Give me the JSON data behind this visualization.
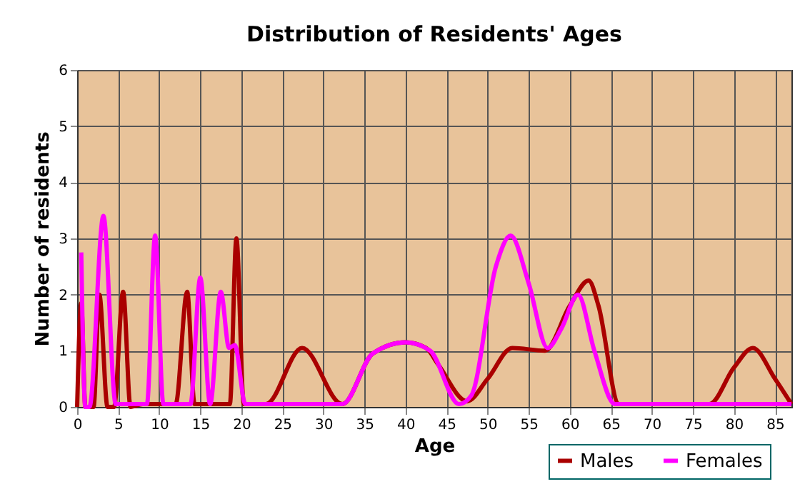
{
  "chart_data": {
    "type": "line",
    "title": "Distribution of Residents' Ages",
    "xlabel": "Age",
    "ylabel": "Number of residents",
    "xlim": [
      0,
      87
    ],
    "xticks": [
      0,
      5,
      10,
      15,
      20,
      25,
      30,
      35,
      40,
      45,
      50,
      55,
      60,
      65,
      70,
      75,
      80,
      85
    ],
    "ylim": [
      0,
      6
    ],
    "yticks": [
      0,
      1,
      2,
      3,
      4,
      5,
      6
    ],
    "grid": true,
    "legend": "bottom right",
    "series": [
      {
        "name": "Males",
        "color": "#aa0000",
        "x": [
          0,
          0.5,
          1,
          2,
          2.7,
          3.7,
          4.5,
          5.6,
          6.5,
          8,
          10,
          12,
          13.4,
          14.3,
          16,
          18.6,
          19.4,
          20.3,
          23,
          27.4,
          32.3,
          36,
          40,
          42.5,
          44,
          47.5,
          50,
          53,
          57,
          60,
          62.3,
          63.5,
          66,
          70,
          77,
          80,
          82.3,
          85,
          87
        ],
        "values": [
          0,
          1.85,
          0,
          0,
          2.0,
          0,
          0,
          2.05,
          0,
          0.05,
          0.05,
          0.05,
          2.05,
          0.05,
          0.05,
          0.05,
          3.0,
          0.05,
          0.05,
          1.05,
          0.05,
          0.95,
          1.15,
          1.05,
          0.75,
          0.1,
          0.5,
          1.05,
          1.0,
          1.8,
          2.25,
          1.8,
          0.05,
          0.05,
          0.05,
          0.7,
          1.05,
          0.5,
          0.05
        ]
      },
      {
        "name": "Females",
        "color": "#ff00ff",
        "x": [
          0.5,
          1,
          1.5,
          3.2,
          4.7,
          8.5,
          9.5,
          10.5,
          13.8,
          15,
          16.2,
          17.5,
          18.5,
          19.2,
          20.5,
          27,
          32.3,
          36,
          40,
          43,
          46.5,
          48,
          51,
          52.8,
          55,
          57.3,
          59,
          61,
          63,
          65.5,
          70,
          80,
          87
        ],
        "values": [
          2.75,
          0,
          0,
          3.4,
          0.05,
          0.05,
          3.05,
          0.05,
          0.05,
          2.3,
          0.05,
          2.05,
          1.05,
          1.1,
          0.05,
          0.05,
          0.05,
          0.95,
          1.15,
          1.0,
          0.05,
          0.2,
          2.5,
          3.05,
          2.2,
          1.05,
          1.4,
          2.0,
          1.0,
          0.05,
          0.05,
          0.05,
          0.05
        ]
      }
    ]
  }
}
